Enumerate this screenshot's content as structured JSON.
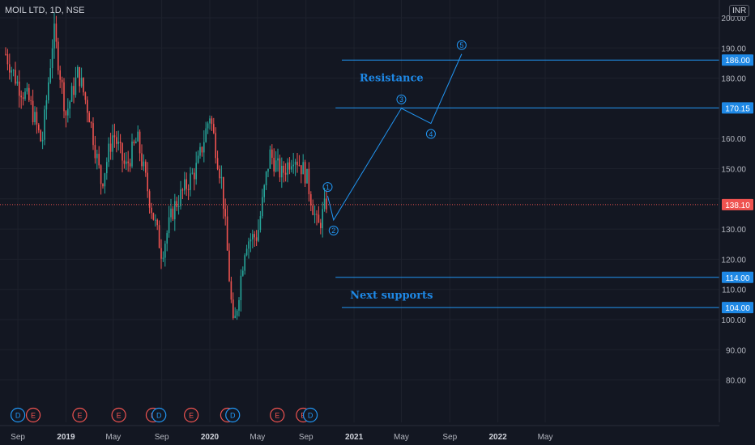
{
  "header": {
    "title": "MOIL LTD, 1D, NSE",
    "currency": "INR"
  },
  "colors": {
    "up": "#26a69a",
    "down": "#ef5350",
    "drawing": "#2196f3",
    "accent_label": "#1e88e5",
    "price_line": "#ef5350",
    "background": "#131722",
    "grid": "#1e222d",
    "text": "#b2b5be"
  },
  "chart_data": {
    "type": "candlestick",
    "title": "MOIL LTD, 1D, NSE",
    "ylim": [
      76,
      208
    ],
    "y_ticks": [
      200,
      190,
      180,
      170,
      160,
      150,
      140,
      130,
      120,
      110,
      100,
      90,
      80
    ],
    "x_ticks": [
      "Sep",
      "2019",
      "May",
      "Sep",
      "2020",
      "May",
      "Sep",
      "2021",
      "May",
      "Sep",
      "2022",
      "May"
    ],
    "last_price": 138.1,
    "price_path": [
      [
        "2018-08",
        188
      ],
      [
        "2018-09",
        178
      ],
      [
        "2018-10",
        172
      ],
      [
        "2018-11",
        158
      ],
      [
        "2018-12",
        196
      ],
      [
        "2019-01",
        168
      ],
      [
        "2019-02",
        182
      ],
      [
        "2019-03",
        168
      ],
      [
        "2019-04",
        145
      ],
      [
        "2019-05",
        162
      ],
      [
        "2019-06",
        150
      ],
      [
        "2019-07",
        160
      ],
      [
        "2019-08",
        140
      ],
      [
        "2019-09",
        122
      ],
      [
        "2019-10",
        137
      ],
      [
        "2019-11",
        144
      ],
      [
        "2019-12",
        151
      ],
      [
        "2020-01",
        168
      ],
      [
        "2020-02",
        145
      ],
      [
        "2020-03",
        96
      ],
      [
        "2020-04",
        126
      ],
      [
        "2020-05",
        128
      ],
      [
        "2020-06",
        155
      ],
      [
        "2020-07",
        148
      ],
      [
        "2020-08",
        155
      ],
      [
        "2020-09",
        148
      ],
      [
        "2020-10",
        130
      ],
      [
        "2020-10-26",
        140
      ]
    ],
    "horizontal_levels": [
      {
        "price": 186.0,
        "label": "186.00",
        "from": "2020-12"
      },
      {
        "price": 170.15,
        "label": "170.15",
        "from": "2020-11-15"
      },
      {
        "price": 114.0,
        "label": "114.00",
        "from": "2020-11-15"
      },
      {
        "price": 104.0,
        "label": "104.00",
        "from": "2020-12"
      }
    ],
    "projected_wave": [
      {
        "date": "2020-10-26",
        "price": 141,
        "label": "1"
      },
      {
        "date": "2020-11-10",
        "price": 133,
        "label": "2"
      },
      {
        "date": "2021-05-01",
        "price": 170,
        "label": "3"
      },
      {
        "date": "2021-07-15",
        "price": 165,
        "label": "4"
      },
      {
        "date": "2021-10-01",
        "price": 188,
        "label": "5"
      }
    ],
    "annotations": [
      {
        "text": "Resistance",
        "date": "2021-09-01",
        "price": 180
      },
      {
        "text": "Next supports",
        "date": "2021-09-01",
        "price": 108
      }
    ],
    "events": [
      {
        "type": "D",
        "date": "2018-09-01"
      },
      {
        "type": "E",
        "date": "2018-10-10"
      },
      {
        "type": "E",
        "date": "2019-02-05"
      },
      {
        "type": "E",
        "date": "2019-05-15"
      },
      {
        "type": "E",
        "date": "2019-08-10"
      },
      {
        "type": "D",
        "date": "2019-08-25"
      },
      {
        "type": "E",
        "date": "2019-11-15"
      },
      {
        "type": "E",
        "date": "2020-02-15"
      },
      {
        "type": "D",
        "date": "2020-02-28"
      },
      {
        "type": "E",
        "date": "2020-06-20"
      },
      {
        "type": "E",
        "date": "2020-08-25"
      },
      {
        "type": "D",
        "date": "2020-09-12"
      }
    ]
  }
}
